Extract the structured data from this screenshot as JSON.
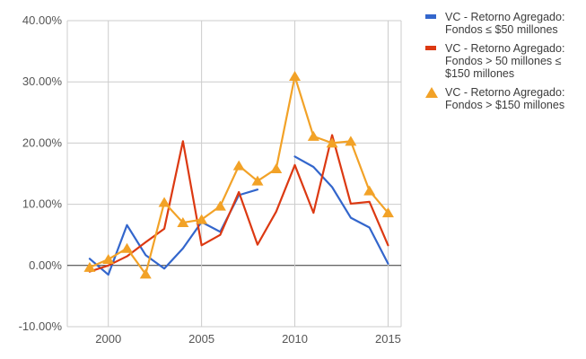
{
  "chart_data": {
    "type": "line",
    "title": "",
    "xlabel": "",
    "ylabel": "",
    "x": [
      1999,
      2000,
      2001,
      2002,
      2003,
      2004,
      2005,
      2006,
      2007,
      2008,
      2009,
      2010,
      2011,
      2012,
      2013,
      2014,
      2015
    ],
    "xlim": [
      1997.8,
      2015.7
    ],
    "ylim": [
      -10,
      40
    ],
    "x_ticks": [
      2000,
      2005,
      2010,
      2015
    ],
    "x_tick_labels": [
      "2000",
      "2005",
      "2010",
      "2015"
    ],
    "y_ticks": [
      -10,
      0,
      10,
      20,
      30,
      40
    ],
    "y_tick_labels": [
      "-10.00%",
      "0.00%",
      "10.00%",
      "20.00%",
      "30.00%",
      "40.00%"
    ],
    "grid": "vertical and horizontal",
    "legend_position": "right",
    "series": [
      {
        "name": "VC - Retorno Agregado: Fondos ≤ $50 millones",
        "color": "#3366cc",
        "marker": "none",
        "values": [
          1.1,
          -1.5,
          6.6,
          1.7,
          -0.5,
          2.8,
          7.1,
          5.5,
          11.5,
          12.4,
          null,
          17.8,
          16.1,
          12.8,
          7.8,
          6.2,
          0.3
        ]
      },
      {
        "name": "VC - Retorno Agregado: Fondos > 50 millones ≤ $150 millones",
        "color": "#dc3912",
        "marker": "none",
        "values": [
          -1.0,
          0.0,
          1.5,
          3.8,
          6.0,
          20.3,
          3.3,
          5.0,
          12.0,
          3.4,
          8.8,
          16.4,
          8.6,
          21.3,
          10.1,
          10.4,
          3.3
        ]
      },
      {
        "name": "VC - Retorno Agregado: Fondos > $150 millones",
        "color": "#f2a227",
        "marker": "triangle",
        "values": [
          -0.3,
          1.0,
          2.8,
          -1.4,
          10.3,
          7.0,
          7.5,
          9.7,
          16.3,
          13.8,
          15.8,
          30.9,
          21.1,
          20.0,
          20.3,
          12.2,
          8.6
        ]
      }
    ]
  }
}
